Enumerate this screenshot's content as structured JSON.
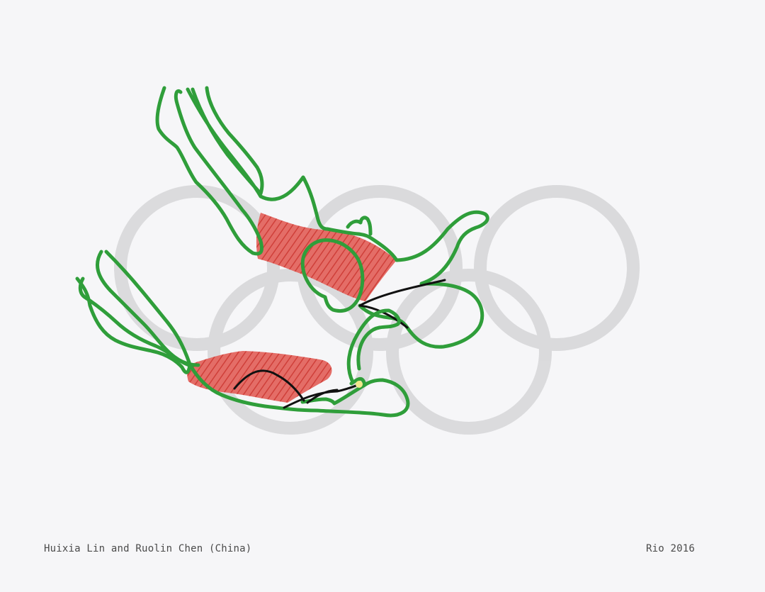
{
  "caption": {
    "athletes": "Huixia Lin and Ruolin Chen (China)",
    "event": "Rio 2016"
  },
  "colors": {
    "paper": "#f6f6f8",
    "rings": "#d9d9db",
    "outline": "#2f9e3a",
    "swimsuit": "#d94b45",
    "detail": "#111111",
    "caption_text": "#4a4a4a"
  },
  "icons": {
    "background": "olympic-rings-icon"
  }
}
